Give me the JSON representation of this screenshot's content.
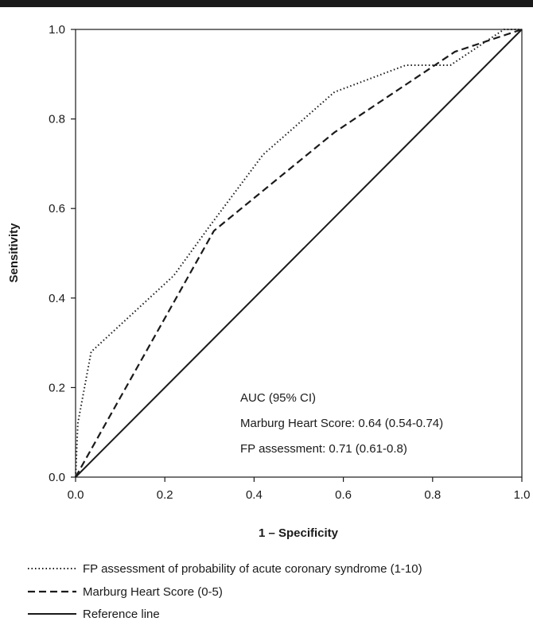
{
  "chart_data": {
    "type": "line",
    "title": "",
    "xlabel": "1 – Specificity",
    "ylabel": "Sensitivity",
    "xlim": [
      0,
      1
    ],
    "ylim": [
      0,
      1
    ],
    "x_ticks": [
      "0.0",
      "0.2",
      "0.4",
      "0.6",
      "0.8",
      "1.0"
    ],
    "y_ticks": [
      "0.0",
      "0.2",
      "0.4",
      "0.6",
      "0.8",
      "1.0"
    ],
    "grid": false,
    "legend_position": "bottom",
    "annotations": [
      "AUC (95% CI)",
      "Marburg Heart Score: 0.64 (0.54-0.74)",
      "FP assessment: 0.71 (0.61-0.8)"
    ],
    "series": [
      {
        "name": "FP assessment of probability of acute coronary syndrome (1-10)",
        "style": "dotted",
        "x": [
          0,
          0.005,
          0.035,
          0.22,
          0.3,
          0.42,
          0.58,
          0.74,
          0.82,
          0.84,
          0.96,
          1.0
        ],
        "y": [
          0,
          0.12,
          0.28,
          0.45,
          0.56,
          0.72,
          0.86,
          0.92,
          0.92,
          0.92,
          1.0,
          1.0
        ]
      },
      {
        "name": "Marburg Heart Score (0-5)",
        "style": "dashed",
        "x": [
          0,
          0.31,
          0.58,
          0.85,
          1.0
        ],
        "y": [
          0,
          0.55,
          0.77,
          0.95,
          1.0
        ]
      },
      {
        "name": "Reference line",
        "style": "solid",
        "x": [
          0,
          1
        ],
        "y": [
          0,
          1
        ]
      }
    ]
  }
}
